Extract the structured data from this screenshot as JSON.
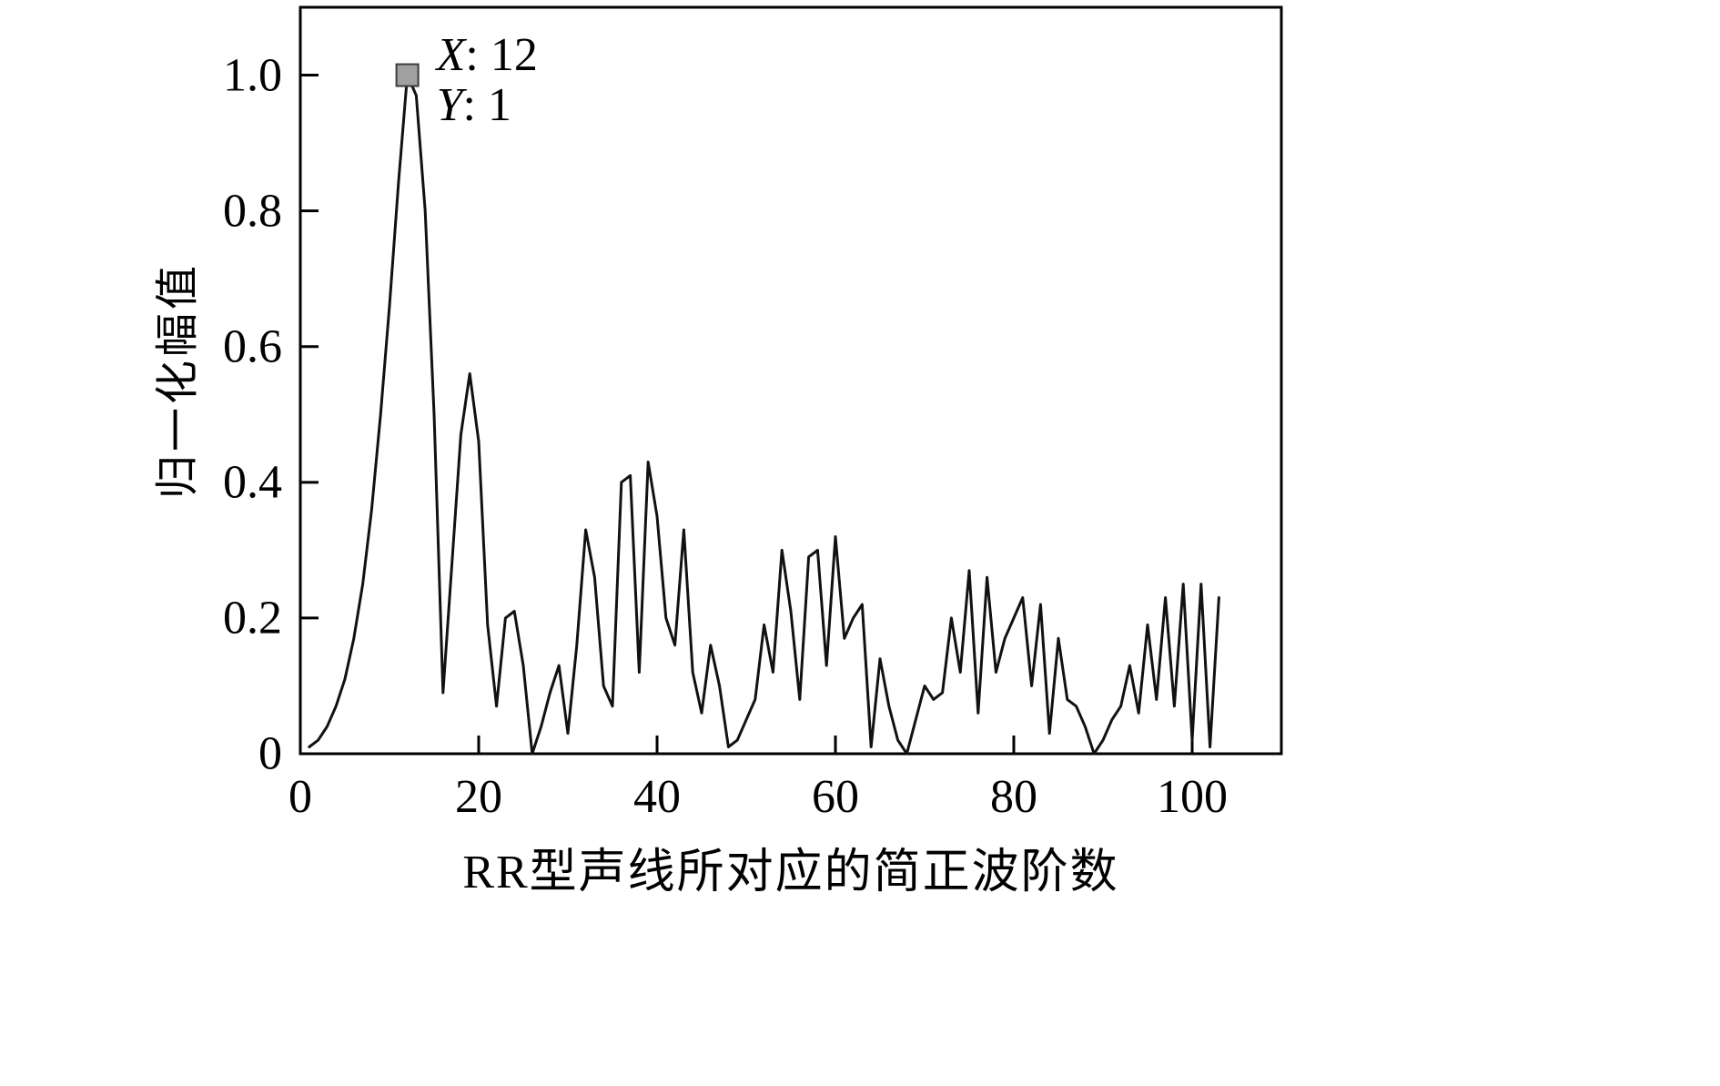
{
  "chart_data": {
    "type": "line",
    "title": "",
    "xlabel": "RR型声线所对应的简正波阶数",
    "ylabel": "归一化幅值",
    "xlim": [
      0,
      110
    ],
    "ylim": [
      0,
      1.1
    ],
    "xticks": [
      0,
      20,
      40,
      60,
      80,
      100
    ],
    "yticks": [
      0,
      0.2,
      0.4,
      0.6,
      0.8,
      1.0
    ],
    "ytick_labels": [
      "0",
      "0.2",
      "0.4",
      "0.6",
      "0.8",
      "1.0"
    ],
    "grid": false,
    "legend": null,
    "line_color": "#111111",
    "axis_color": "#000000",
    "x": [
      1,
      2,
      3,
      4,
      5,
      6,
      7,
      8,
      9,
      10,
      11,
      12,
      13,
      14,
      15,
      16,
      17,
      18,
      19,
      20,
      21,
      22,
      23,
      24,
      25,
      26,
      27,
      28,
      29,
      30,
      31,
      32,
      33,
      34,
      35,
      36,
      37,
      38,
      39,
      40,
      41,
      42,
      43,
      44,
      45,
      46,
      47,
      48,
      49,
      50,
      51,
      52,
      53,
      54,
      55,
      56,
      57,
      58,
      59,
      60,
      61,
      62,
      63,
      64,
      65,
      66,
      67,
      68,
      69,
      70,
      71,
      72,
      73,
      74,
      75,
      76,
      77,
      78,
      79,
      80,
      81,
      82,
      83,
      84,
      85,
      86,
      87,
      88,
      89,
      90,
      91,
      92,
      93,
      94,
      95,
      96,
      97,
      98,
      99,
      100,
      101,
      102,
      103
    ],
    "y": [
      0.01,
      0.02,
      0.04,
      0.07,
      0.11,
      0.17,
      0.25,
      0.36,
      0.5,
      0.66,
      0.84,
      1.0,
      0.97,
      0.8,
      0.5,
      0.09,
      0.28,
      0.47,
      0.56,
      0.46,
      0.19,
      0.07,
      0.2,
      0.21,
      0.13,
      0.0,
      0.04,
      0.09,
      0.13,
      0.03,
      0.16,
      0.33,
      0.26,
      0.1,
      0.07,
      0.4,
      0.41,
      0.12,
      0.43,
      0.35,
      0.2,
      0.16,
      0.33,
      0.12,
      0.06,
      0.16,
      0.1,
      0.01,
      0.02,
      0.05,
      0.08,
      0.19,
      0.12,
      0.3,
      0.21,
      0.08,
      0.29,
      0.3,
      0.13,
      0.32,
      0.17,
      0.2,
      0.22,
      0.01,
      0.14,
      0.07,
      0.02,
      0.0,
      0.05,
      0.1,
      0.08,
      0.09,
      0.2,
      0.12,
      0.27,
      0.06,
      0.26,
      0.12,
      0.17,
      0.2,
      0.23,
      0.1,
      0.22,
      0.03,
      0.17,
      0.08,
      0.07,
      0.04,
      0.0,
      0.02,
      0.05,
      0.07,
      0.13,
      0.06,
      0.19,
      0.08,
      0.23,
      0.07,
      0.25,
      0.02,
      0.25,
      0.01,
      0.23
    ],
    "annotation": {
      "point": {
        "x": 12,
        "y": 1
      },
      "marker_fill": "#a0a0a0",
      "marker_stroke": "#3c3c3c",
      "lines": [
        {
          "sym": "X",
          "sep": ": ",
          "val": "12"
        },
        {
          "sym": "Y",
          "sep": ": ",
          "val": "1"
        }
      ]
    }
  }
}
